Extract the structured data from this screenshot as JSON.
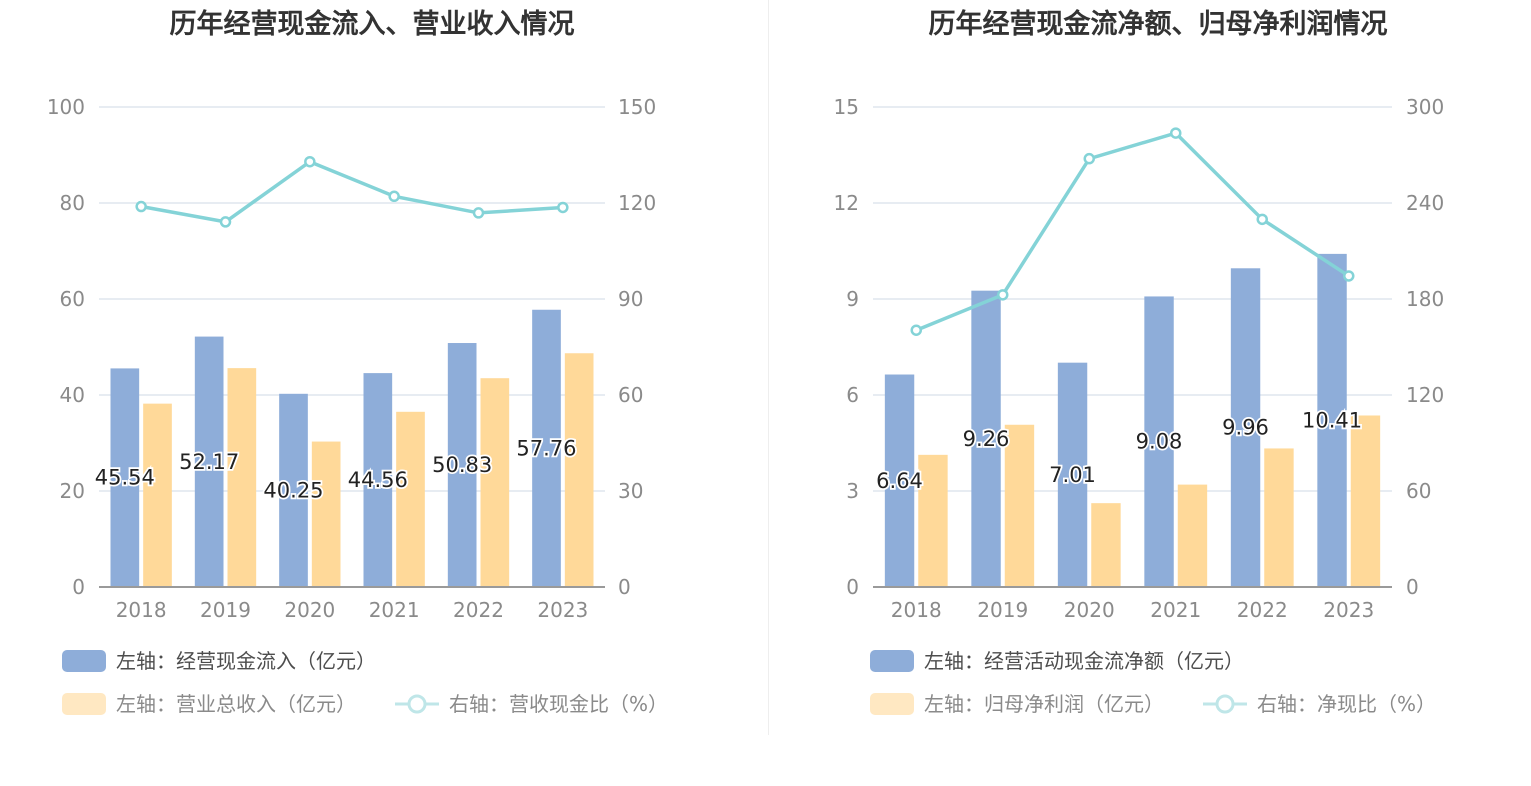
{
  "colors": {
    "bar_left": "#8eadd9",
    "bar_right": "#ffd999",
    "bar_right_legend": "#ffe8c2",
    "line": "#84d3d7",
    "grid": "#dfe6ee",
    "axis_text": "#8a8a8a",
    "title": "#333333",
    "legend_text": "#4d4d4d",
    "legend_text_light": "#8a8a8a"
  },
  "chart_data": [
    {
      "type": "bar",
      "title": "历年经营现金流入、营业收入情况",
      "categories": [
        "2018",
        "2019",
        "2020",
        "2021",
        "2022",
        "2023"
      ],
      "y_left": {
        "range": [
          0,
          100
        ],
        "ticks": [
          "0",
          "20",
          "40",
          "60",
          "80",
          "100"
        ]
      },
      "y_right": {
        "range": [
          0,
          150
        ],
        "ticks": [
          "0",
          "30",
          "60",
          "90",
          "120",
          "150"
        ]
      },
      "grid": true,
      "legend_position": "bottom-left",
      "series": [
        {
          "name": "左轴：经营现金流入（亿元）",
          "axis": "left",
          "kind": "bar",
          "values": [
            45.54,
            52.17,
            40.25,
            44.56,
            50.83,
            57.76
          ],
          "labels": [
            "45.54",
            "52.17",
            "40.25",
            "44.56",
            "50.83",
            "57.76"
          ]
        },
        {
          "name": "左轴：营业总收入（亿元）",
          "axis": "left",
          "kind": "bar",
          "values": [
            38.2,
            45.6,
            30.3,
            36.5,
            43.5,
            48.7
          ]
        },
        {
          "name": "右轴：营收现金比（%）",
          "axis": "right",
          "kind": "line",
          "values": [
            118.9,
            114.1,
            132.9,
            122.1,
            116.9,
            118.6
          ]
        }
      ]
    },
    {
      "type": "bar",
      "title": "历年经营现金流净额、归母净利润情况",
      "categories": [
        "2018",
        "2019",
        "2020",
        "2021",
        "2022",
        "2023"
      ],
      "y_left": {
        "range": [
          0,
          15
        ],
        "ticks": [
          "0",
          "3",
          "6",
          "9",
          "12",
          "15"
        ]
      },
      "y_right": {
        "range": [
          0,
          300
        ],
        "ticks": [
          "0",
          "60",
          "120",
          "180",
          "240",
          "300"
        ]
      },
      "grid": true,
      "legend_position": "bottom-left",
      "series": [
        {
          "name": "左轴：经营活动现金流净额（亿元）",
          "axis": "left",
          "kind": "bar",
          "values": [
            6.64,
            9.26,
            7.01,
            9.08,
            9.96,
            10.41
          ],
          "labels": [
            "6.64",
            "9.26",
            "7.01",
            "9.08",
            "9.96",
            "10.41"
          ]
        },
        {
          "name": "左轴：归母净利润（亿元）",
          "axis": "left",
          "kind": "bar",
          "values": [
            4.13,
            5.07,
            2.62,
            3.2,
            4.33,
            5.36
          ]
        },
        {
          "name": "右轴：净现比（%）",
          "axis": "right",
          "kind": "line",
          "values": [
            160.5,
            182.6,
            267.7,
            283.7,
            229.8,
            194.4
          ]
        }
      ]
    }
  ]
}
